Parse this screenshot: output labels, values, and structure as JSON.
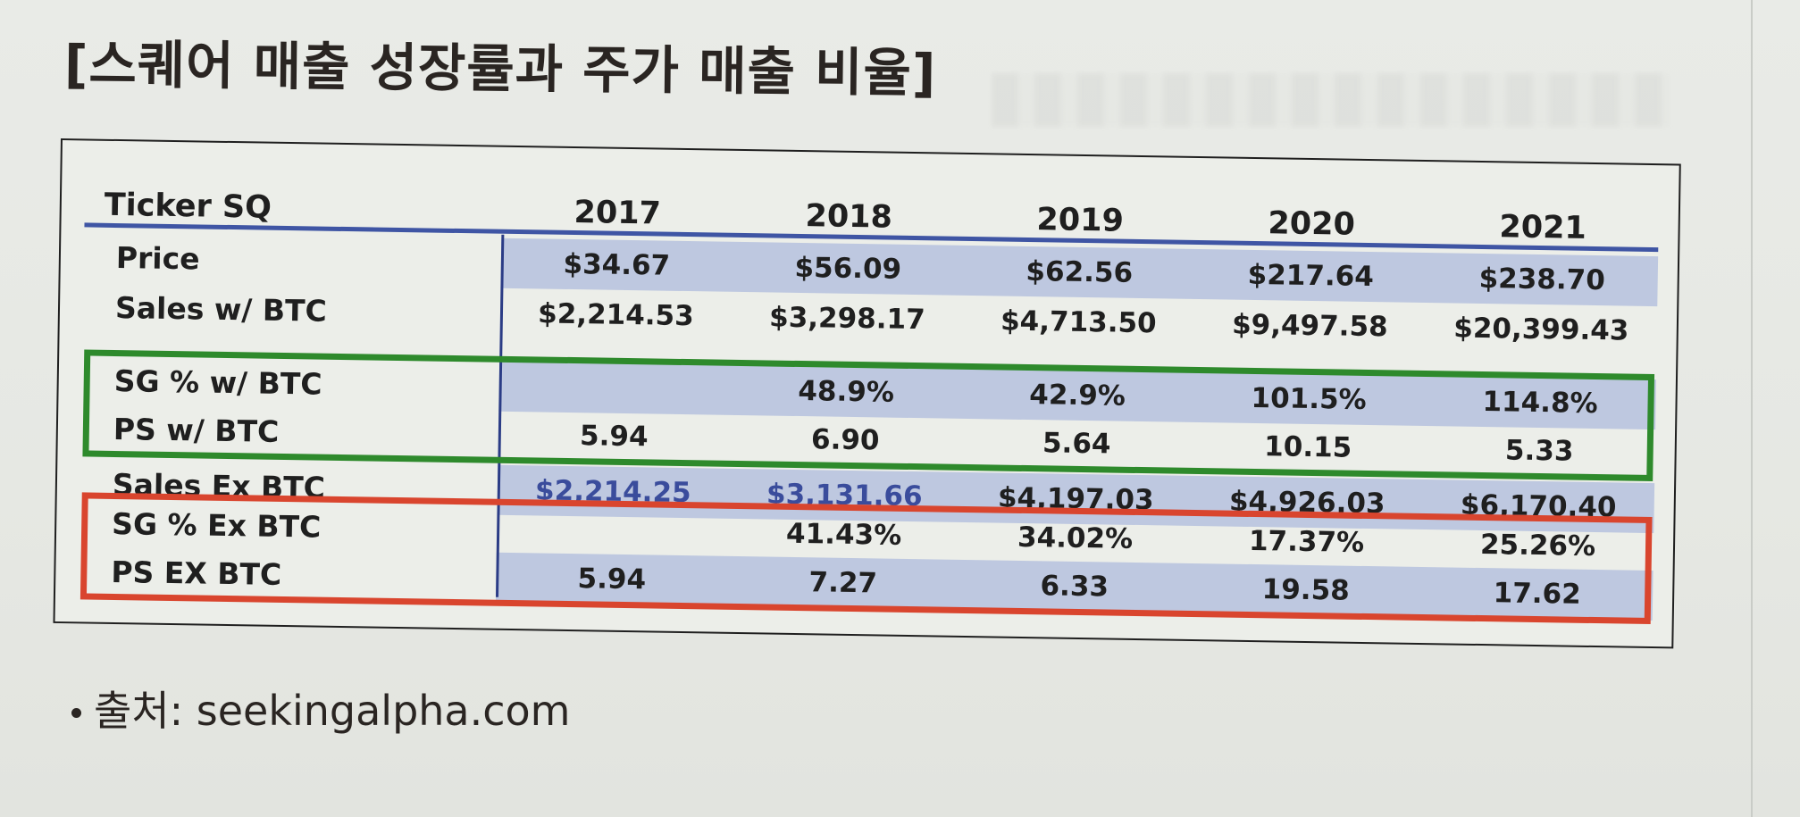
{
  "title": "[스퀘어 매출 성장률과 주가 매출 비율]",
  "table": {
    "header_label": "Ticker SQ",
    "years": [
      "2017",
      "2018",
      "2019",
      "2020",
      "2021"
    ],
    "rows": [
      {
        "label": "Price",
        "values": [
          "$34.67",
          "$56.09",
          "$62.56",
          "$217.64",
          "$238.70"
        ]
      },
      {
        "label": "Sales w/ BTC",
        "values": [
          "$2,214.53",
          "$3,298.17",
          "$4,713.50",
          "$9,497.58",
          "$20,399.43"
        ]
      },
      {
        "label": "SG % w/ BTC",
        "values": [
          "",
          "48.9%",
          "42.9%",
          "101.5%",
          "114.8%"
        ]
      },
      {
        "label": "PS w/ BTC",
        "values": [
          "5.94",
          "6.90",
          "5.64",
          "10.15",
          "5.33"
        ]
      },
      {
        "label": "Sales Ex BTC",
        "values": [
          "$2,214.25",
          "$3,131.66",
          "$4,197.03",
          "$4,926.03",
          "$6,170.40"
        ]
      },
      {
        "label": "SG % Ex BTC",
        "values": [
          "",
          "41.43%",
          "34.02%",
          "17.37%",
          "25.26%"
        ]
      },
      {
        "label": "PS EX BTC",
        "values": [
          "5.94",
          "7.27",
          "6.33",
          "19.58",
          "17.62"
        ]
      }
    ]
  },
  "colors": {
    "header_rule": "#3f55a4",
    "row_shading": "#bec8e0",
    "highlight_green": "#2e8a2c",
    "highlight_red": "#d9452e"
  },
  "source": "출처: seekingalpha.com"
}
